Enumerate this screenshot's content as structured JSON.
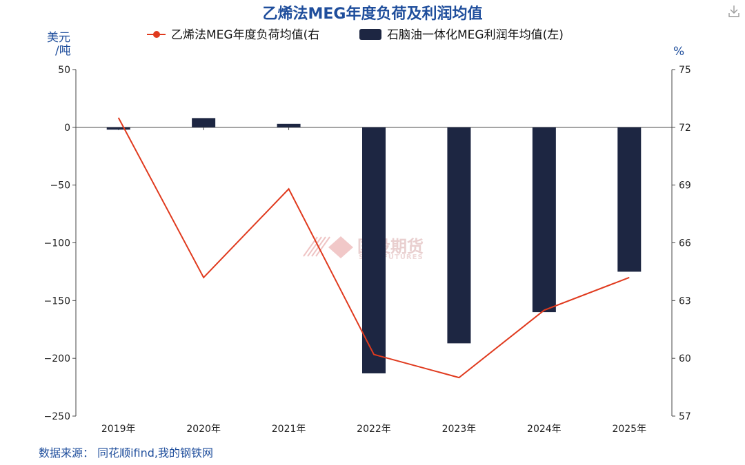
{
  "chart_data": {
    "type": "bar+line",
    "title": "乙烯法MEG年度负荷及利润均值",
    "categories": [
      "2019年",
      "2020年",
      "2021年",
      "2022年",
      "2023年",
      "2024年",
      "2025年"
    ],
    "series": [
      {
        "name": "石脑油一体化MEG利润年均值(左)",
        "type": "bar",
        "axis": "left",
        "color": "#1d2642",
        "values": [
          -2,
          8,
          3,
          -213,
          -187,
          -160,
          -125
        ]
      },
      {
        "name": "乙烯法MEG年度负荷均值(右",
        "type": "line",
        "axis": "right",
        "color": "#e03a1e",
        "values": [
          72.5,
          64.2,
          68.8,
          60.2,
          59.0,
          62.5,
          64.2
        ]
      }
    ],
    "left_axis": {
      "unit": [
        "美元",
        "/吨"
      ],
      "ylim": [
        -250,
        50
      ],
      "ticks": [
        50,
        0,
        -50,
        -100,
        -150,
        -200,
        -250
      ]
    },
    "right_axis": {
      "unit": "%",
      "ylim": [
        57,
        75
      ],
      "ticks": [
        75,
        72,
        69,
        66,
        63,
        60,
        57
      ]
    },
    "grid": false,
    "legend": "top-center"
  },
  "source": "数据来源：  同花顺ifind,我的钢铁网",
  "watermark": {
    "text": "国投期货",
    "sub": "SDIC FUTURES"
  },
  "download_icon": "download-icon"
}
